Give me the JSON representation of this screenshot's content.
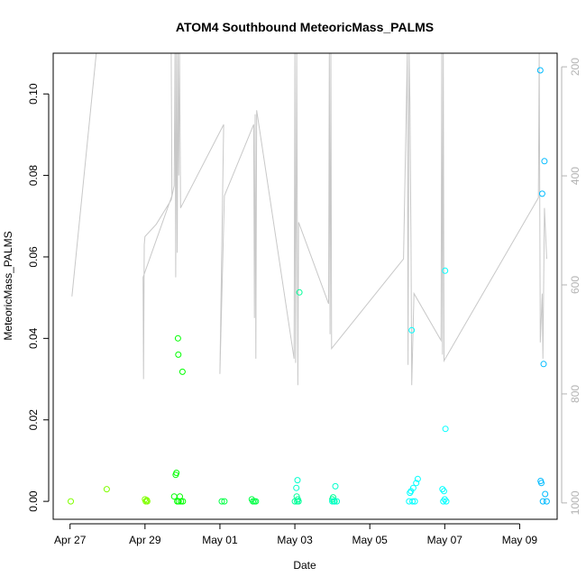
{
  "chart_data": {
    "type": "scatter",
    "title": "ATOM4 Southbound MeteoricMass_PALMS",
    "xlabel": "Date",
    "ylabel": "MeteoricMass_PALMS",
    "x_ticks": [
      "Apr 27",
      "Apr 29",
      "May 01",
      "May 03",
      "May 05",
      "May 07",
      "May 09"
    ],
    "x_tick_days": [
      0,
      2,
      4,
      6,
      8,
      10,
      12
    ],
    "xlim_days": [
      -0.45,
      13.0
    ],
    "ylim": [
      -0.0044,
      0.11
    ],
    "y_ticks": [
      "0.00",
      "0.02",
      "0.04",
      "0.06",
      "0.08",
      "0.10"
    ],
    "y_tick_values": [
      0.0,
      0.02,
      0.04,
      0.06,
      0.08,
      0.1
    ],
    "right_axis": {
      "ylim": [
        1030,
        175
      ],
      "ticks": [
        "200",
        "400",
        "600",
        "800",
        "1000"
      ],
      "tick_values": [
        200,
        400,
        600,
        800,
        1000
      ],
      "color": "#b3b3b3"
    },
    "marker_colors": [
      "#00ff00",
      "#00ee77",
      "#00ffff",
      "#00aaff"
    ],
    "series": [
      {
        "color": "#80ff00",
        "points": [
          [
            0.02,
            0.0
          ],
          [
            0.98,
            0.003
          ],
          [
            2.0,
            0.0005
          ],
          [
            2.02,
            0.0
          ],
          [
            2.05,
            0.0003
          ],
          [
            2.06,
            0.0
          ]
        ]
      },
      {
        "color": "#00ff00",
        "points": [
          [
            2.78,
            0.0012
          ],
          [
            2.82,
            0.0065
          ],
          [
            2.84,
            0.007
          ],
          [
            2.86,
            0.0
          ],
          [
            2.88,
            0.04
          ],
          [
            2.89,
            0.036
          ],
          [
            2.9,
            0.0
          ],
          [
            2.93,
            0.0012
          ],
          [
            2.96,
            0.0
          ],
          [
            3.0,
            0.0318
          ],
          [
            3.01,
            0.0
          ]
        ]
      },
      {
        "color": "#00ff44",
        "points": [
          [
            4.05,
            0.0
          ],
          [
            4.12,
            0.0
          ],
          [
            4.85,
            0.0005
          ],
          [
            4.88,
            0.0
          ],
          [
            4.92,
            0.0
          ],
          [
            4.96,
            0.0
          ]
        ]
      },
      {
        "color": "#00ff99",
        "points": [
          [
            6.0,
            0.0
          ],
          [
            6.05,
            0.0012
          ],
          [
            6.06,
            0.0
          ],
          [
            6.08,
            0.0005
          ],
          [
            6.1,
            0.0
          ],
          [
            6.12,
            0.0513
          ],
          [
            7.0,
            0.0005
          ],
          [
            7.02,
            0.001
          ],
          [
            7.06,
            0.0
          ]
        ]
      },
      {
        "color": "#00ffcc",
        "points": [
          [
            6.04,
            0.0033
          ],
          [
            6.07,
            0.0052
          ],
          [
            7.0,
            0.0
          ],
          [
            7.04,
            0.0
          ],
          [
            7.08,
            0.0037
          ],
          [
            7.12,
            0.0
          ]
        ]
      },
      {
        "color": "#00ffff",
        "points": [
          [
            9.05,
            0.0
          ],
          [
            9.07,
            0.0021
          ],
          [
            9.1,
            0.0025
          ],
          [
            9.12,
            0.042
          ],
          [
            9.14,
            0.0
          ],
          [
            9.16,
            0.0033
          ],
          [
            9.2,
            0.0
          ],
          [
            9.24,
            0.0045
          ],
          [
            9.28,
            0.0055
          ],
          [
            9.94,
            0.003
          ],
          [
            9.96,
            0.0
          ],
          [
            9.98,
            0.0025
          ],
          [
            10.0,
            0.0005
          ],
          [
            10.01,
            0.0566
          ],
          [
            10.02,
            0.0178
          ],
          [
            10.04,
            0.0
          ]
        ]
      },
      {
        "color": "#00bbff",
        "points": [
          [
            12.55,
            0.1058
          ],
          [
            12.56,
            0.005
          ],
          [
            12.58,
            0.0045
          ],
          [
            12.6,
            0.0755
          ],
          [
            12.62,
            0.0
          ],
          [
            12.64,
            0.0337
          ],
          [
            12.66,
            0.0835
          ],
          [
            12.68,
            0.0018
          ],
          [
            12.72,
            0.0
          ]
        ]
      }
    ],
    "altitude_trace": {
      "color": "#c8c8c8",
      "points": [
        [
          0.05,
          0.0503
        ],
        [
          0.7,
          0.11
        ],
        [
          2.0,
          0.11
        ],
        [
          2.7,
          0.11
        ],
        [
          2.72,
          0.075
        ],
        [
          1.95,
          0.055
        ],
        [
          1.96,
          0.03
        ],
        [
          1.98,
          0.063
        ],
        [
          2.0,
          0.065
        ],
        [
          2.3,
          0.068
        ],
        [
          2.7,
          0.074
        ],
        [
          2.78,
          0.0775
        ],
        [
          2.8,
          0.11
        ],
        [
          2.82,
          0.055
        ],
        [
          2.84,
          0.11
        ],
        [
          2.86,
          0.061
        ],
        [
          2.88,
          0.11
        ],
        [
          2.9,
          0.08
        ],
        [
          2.92,
          0.11
        ],
        [
          2.95,
          0.072
        ],
        [
          4.1,
          0.0925
        ],
        [
          4.0,
          0.0313
        ],
        [
          4.12,
          0.075
        ],
        [
          4.9,
          0.0925
        ],
        [
          4.92,
          0.045
        ],
        [
          4.94,
          0.095
        ],
        [
          4.96,
          0.035
        ],
        [
          4.98,
          0.096
        ],
        [
          5.98,
          0.035
        ],
        [
          6.0,
          0.11
        ],
        [
          6.02,
          0.034
        ],
        [
          6.05,
          0.11
        ],
        [
          6.08,
          0.0285
        ],
        [
          6.1,
          0.0685
        ],
        [
          6.9,
          0.0485
        ],
        [
          6.92,
          0.11
        ],
        [
          6.94,
          0.041
        ],
        [
          6.96,
          0.11
        ],
        [
          6.98,
          0.0375
        ],
        [
          8.9,
          0.0595
        ],
        [
          9.0,
          0.11
        ],
        [
          9.02,
          0.0335
        ],
        [
          9.05,
          0.11
        ],
        [
          9.07,
          0.0975
        ],
        [
          9.1,
          0.063
        ],
        [
          9.12,
          0.0285
        ],
        [
          9.18,
          0.051
        ],
        [
          9.9,
          0.0395
        ],
        [
          9.92,
          0.11
        ],
        [
          9.94,
          0.036
        ],
        [
          9.96,
          0.11
        ],
        [
          9.98,
          0.0345
        ],
        [
          12.5,
          0.0745
        ],
        [
          12.52,
          0.11
        ],
        [
          12.55,
          0.039
        ],
        [
          12.6,
          0.051
        ],
        [
          12.62,
          0.035
        ],
        [
          12.66,
          0.072
        ],
        [
          12.72,
          0.0595
        ]
      ]
    }
  }
}
